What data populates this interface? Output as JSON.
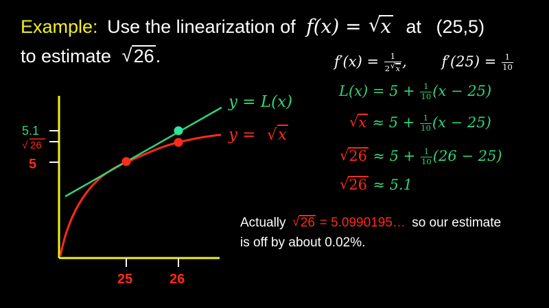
{
  "title": {
    "example_label": "Example:",
    "line1_text": "Use the linearization of",
    "line1_fx": "f(x) =",
    "line1_sqrt_arg": "x",
    "line1_at": "at",
    "line1_point": "(25,5)",
    "line2_text": "to estimate",
    "line2_sqrt_arg": "26",
    "line2_period": "."
  },
  "derivative": {
    "lhs": "f′(x) =",
    "frac_num": "1",
    "frac_den_coef": "2",
    "frac_den_sqrt_arg": "x",
    "comma": ",",
    "at25_lhs": "f′(25) =",
    "at25_num": "1",
    "at25_den": "10"
  },
  "steps": {
    "line1_lhs": "L(x) = 5 +",
    "line1_num": "1",
    "line1_den": "10",
    "line1_tail": "(x − 25)",
    "line2_sqrt_arg": "x",
    "line2_mid": "≈ 5 +",
    "line2_num": "1",
    "line2_den": "10",
    "line2_tail": "(x − 25)",
    "line3_sqrt_arg": "26",
    "line3_mid": "≈ 5 +",
    "line3_num": "1",
    "line3_den": "10",
    "line3_tail": "(26 − 25)",
    "line4_sqrt_arg": "26",
    "line4_tail": "≈ 5.1"
  },
  "note": {
    "actually": "Actually",
    "sqrt_arg": "26",
    "value": "= 5.0990195…",
    "rest_line1": "so our estimate",
    "line2": "is off by about  0.02%."
  },
  "graph": {
    "label_line": "y = L(x)",
    "label_curve_prefix": "y =",
    "label_curve_sqrt_arg": "x",
    "ytick_51": "5.1",
    "ytick_sqrt26_arg": "26",
    "ytick_5": "5",
    "xtick_25": "25",
    "xtick_26": "26",
    "colors": {
      "axes": "#f2f21a",
      "tangent": "#2fd67a",
      "curve": "#ff2a1a",
      "green_point": "#2ee6a0",
      "red_point": "#ff2a1a"
    }
  }
}
